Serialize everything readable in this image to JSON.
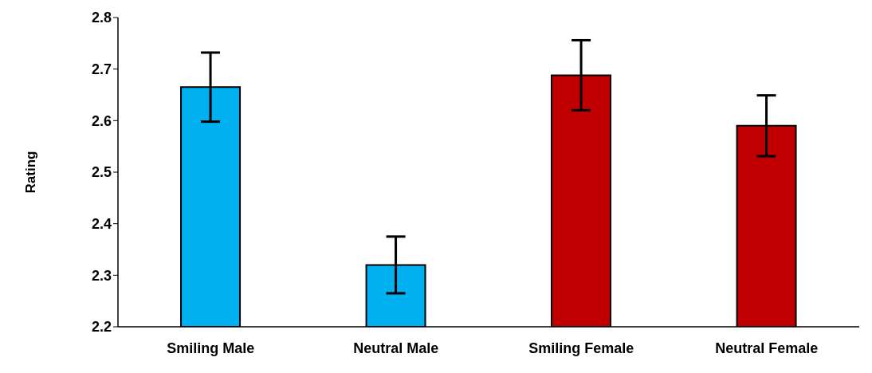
{
  "chart_data": {
    "type": "bar",
    "ylabel": "Rating",
    "categories": [
      "Smiling Male",
      "Neutral Male",
      "Smiling Female",
      "Neutral Female"
    ],
    "values": [
      2.665,
      2.32,
      2.688,
      2.59
    ],
    "errors": [
      0.067,
      0.055,
      0.068,
      0.059
    ],
    "colors": [
      "#00b0f0",
      "#00b0f0",
      "#c00000",
      "#c00000"
    ],
    "ylim": [
      2.2,
      2.8
    ],
    "yticks": [
      2.2,
      2.3,
      2.4,
      2.5,
      2.6,
      2.7,
      2.8
    ],
    "grid": false
  }
}
